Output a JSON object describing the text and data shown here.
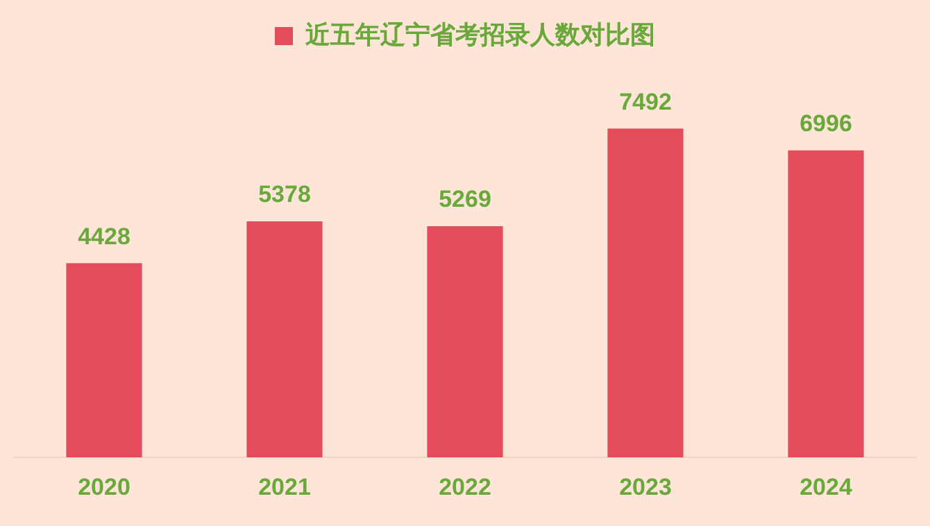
{
  "chart_data": {
    "type": "bar",
    "categories": [
      "2020",
      "2021",
      "2022",
      "2023",
      "2024"
    ],
    "series": [
      {
        "name": "近五年辽宁省考招录人数对比图",
        "color": "#e44b5b",
        "values": [
          4428,
          5378,
          5269,
          7492,
          6996
        ]
      }
    ],
    "tick_labels": "x",
    "grid": false,
    "legend": "top",
    "data_labels": true
  }
}
